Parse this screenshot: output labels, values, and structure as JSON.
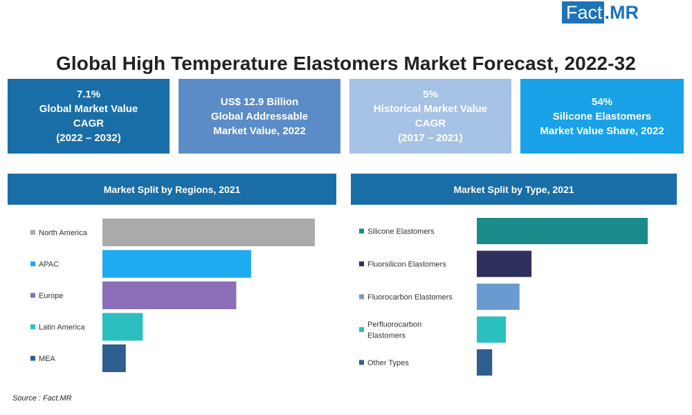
{
  "logo": {
    "fact": "Fact",
    "mr": ".MR"
  },
  "title": "Global High Temperature Elastomers Market Forecast, 2022-32",
  "kpis": [
    {
      "lines": [
        "7.1%",
        "Global Market Value",
        "CAGR",
        "(2022 – 2032)"
      ],
      "color": "#1a6ea8"
    },
    {
      "lines": [
        "US$ 12.9 Billion",
        "Global Addressable",
        "Market Value, 2022"
      ],
      "color": "#5b8cc8"
    },
    {
      "lines": [
        "5%",
        "Historical Market Value",
        "CAGR",
        "(2017 – 2021)"
      ],
      "color": "#a6c2e4"
    },
    {
      "lines": [
        "54%",
        "Silicone Elastomers",
        "Market Value Share, 2022"
      ],
      "color": "#19a2e8"
    }
  ],
  "panels": {
    "regions_header": "Market Split by Regions, 2021",
    "type_header": "Market Split by Type, 2021",
    "header_color": "#1a6ea8"
  },
  "chart_data": [
    {
      "type": "bar",
      "orientation": "horizontal",
      "title": "Market Split by Regions, 2021",
      "categories": [
        "North America",
        "APAC",
        "Europe",
        "Latin America",
        "MEA"
      ],
      "values": [
        100,
        70,
        63,
        19,
        11
      ],
      "value_scale": "relative (no axis shown)",
      "colors": [
        "#aaaaaa",
        "#1eaaf1",
        "#8b6db8",
        "#2bbfbf",
        "#2e5e8e"
      ],
      "grid": false
    },
    {
      "type": "bar",
      "orientation": "horizontal",
      "title": "Market Split by Type, 2021",
      "categories": [
        "Silicone Elastomers",
        "Fluorsilicon Elastomers",
        "Fluorocarbon Elastomers",
        "Perfluorocarbon Elastomers",
        "Other Types"
      ],
      "label_lines": [
        [
          "Silicone Elastomers"
        ],
        [
          "Fluorsilicon Elastomers"
        ],
        [
          "Fluorocarbon Elastomers"
        ],
        [
          "Perfluorocarbon",
          "Elastomers"
        ],
        [
          "Other Types"
        ]
      ],
      "values": [
        100,
        32,
        25,
        17,
        9
      ],
      "value_scale": "relative (no axis shown)",
      "colors": [
        "#1b8a8a",
        "#2f2f5e",
        "#6a9bd0",
        "#2bbfbf",
        "#2e5e8e"
      ],
      "grid": false
    }
  ],
  "source": "Source : Fact.MR"
}
